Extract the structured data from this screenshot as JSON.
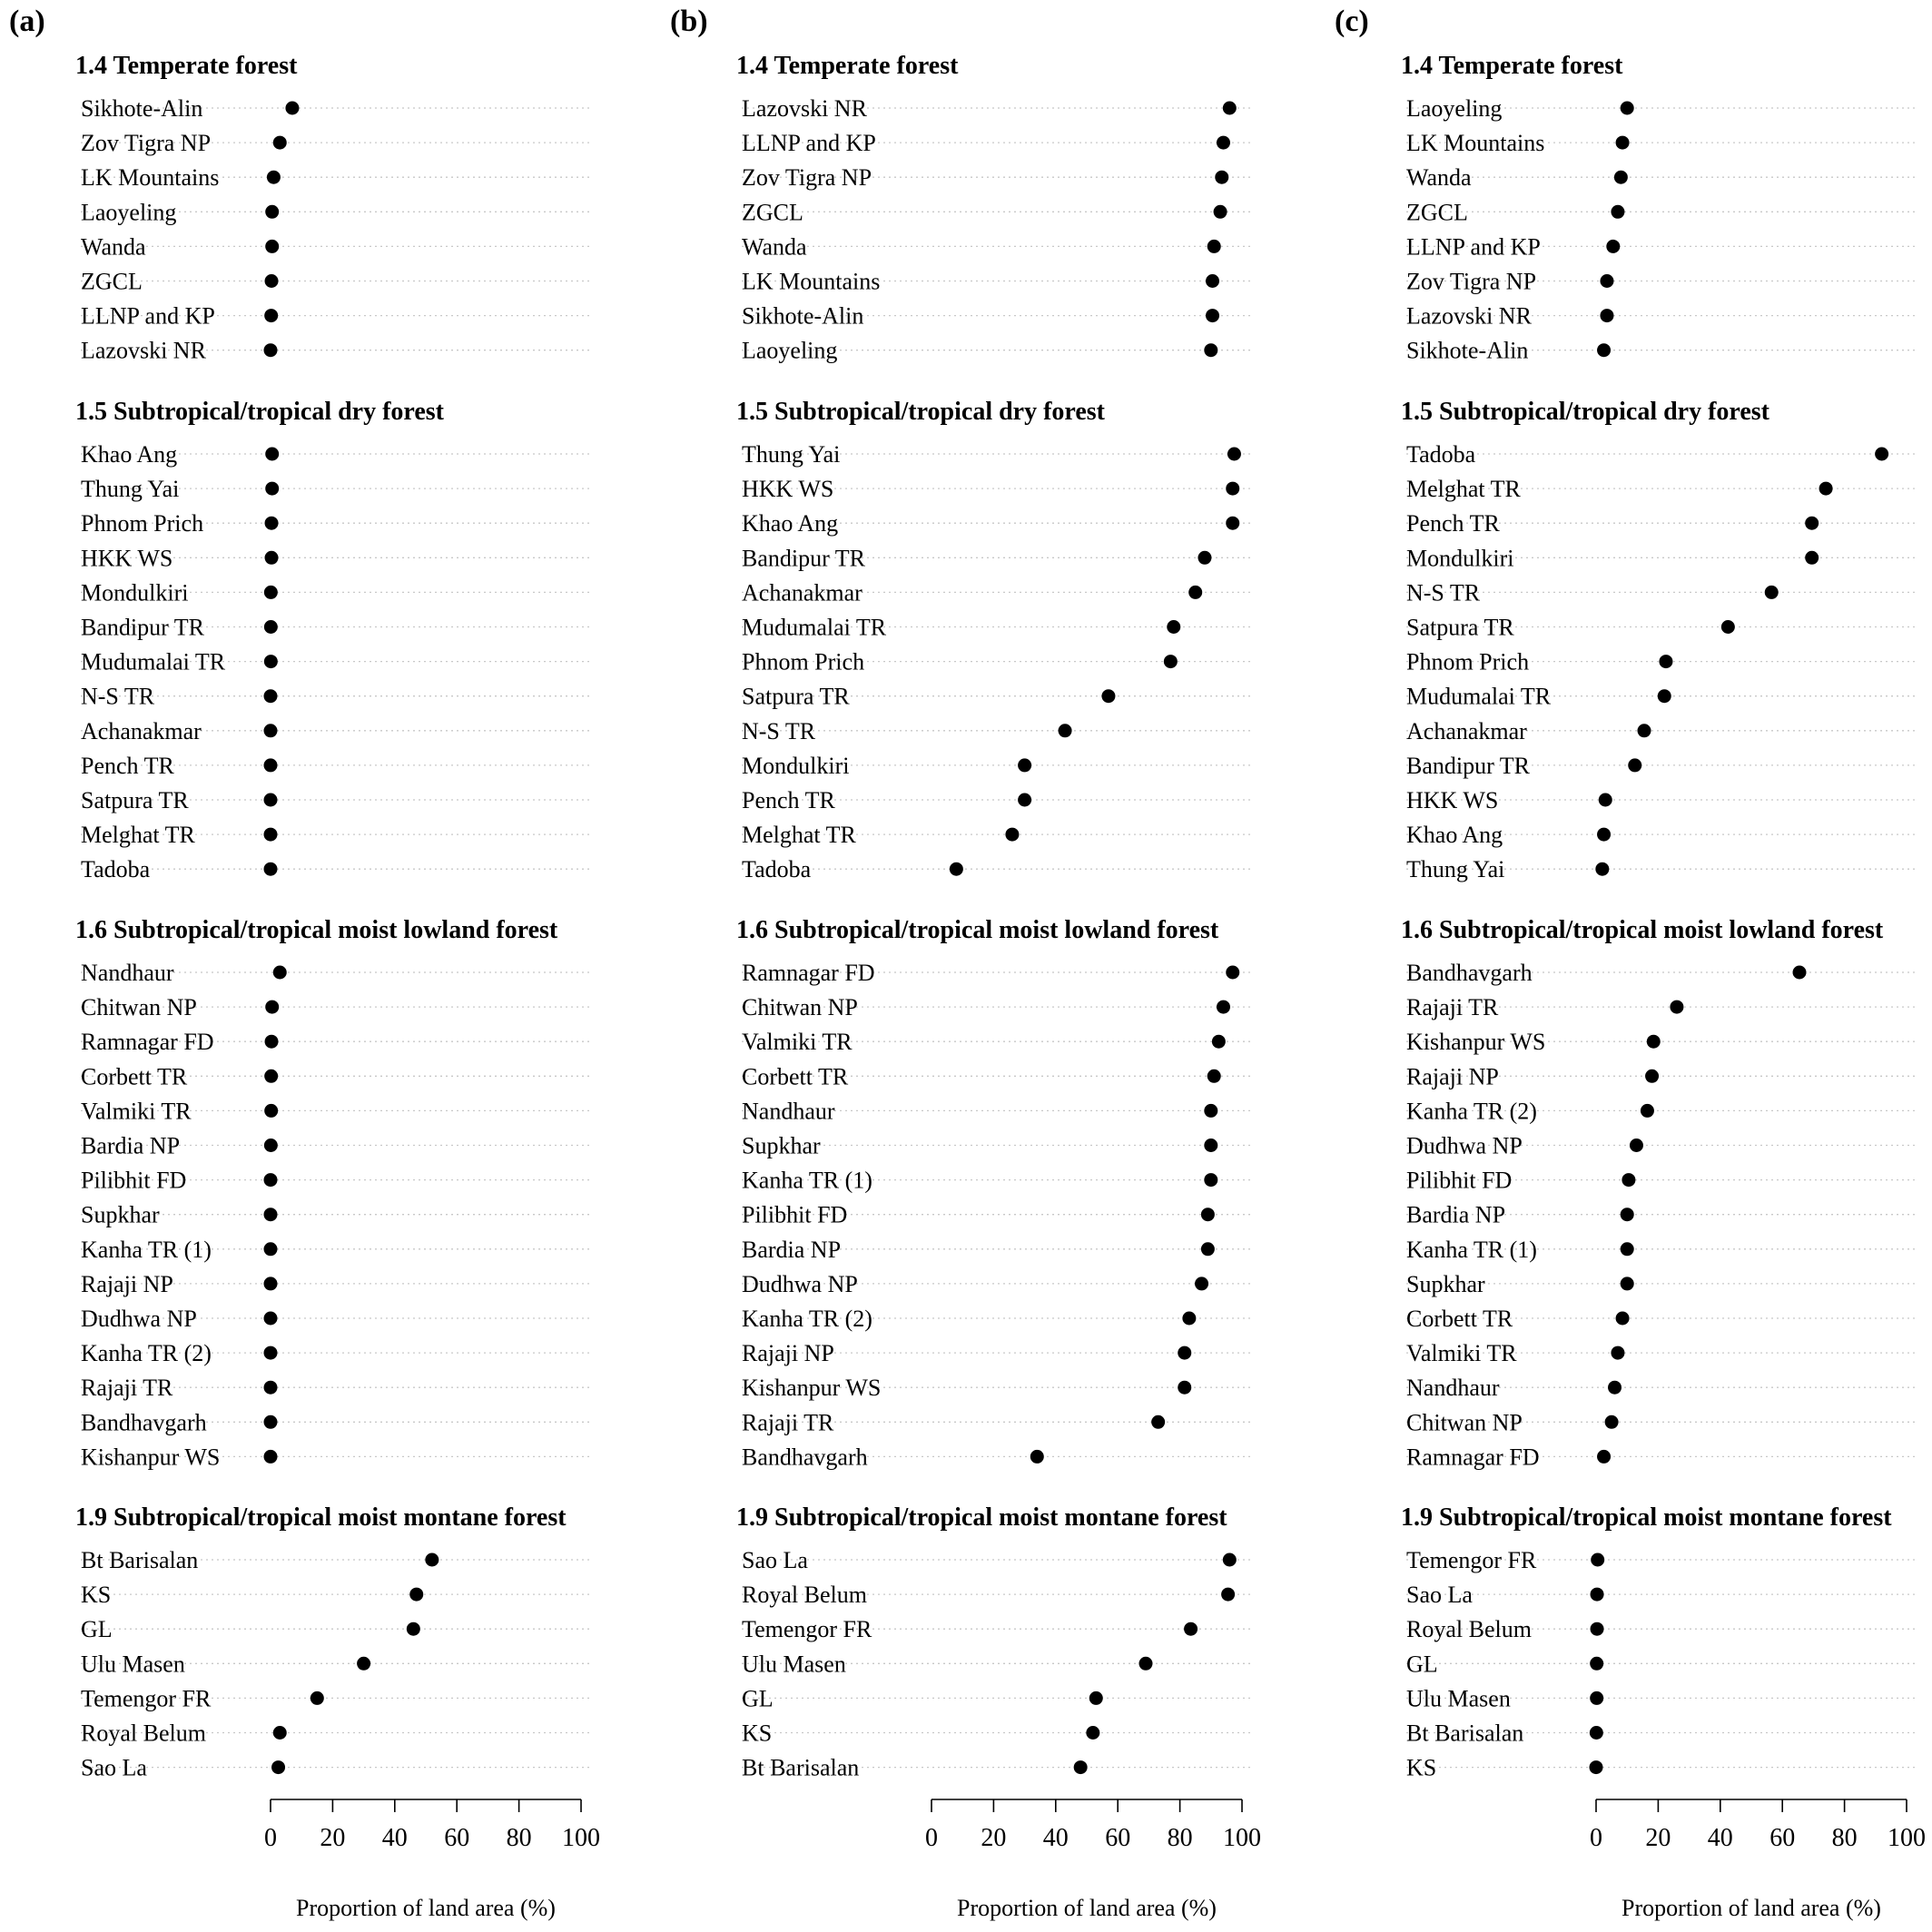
{
  "chart_data": [
    {
      "type": "dot",
      "panel_label": "(a)",
      "xlabel": "Proportion of land area (%)",
      "xlim": [
        0,
        100
      ],
      "xticks": [
        0,
        20,
        40,
        60,
        80,
        100
      ],
      "groups": [
        {
          "title": "1.4 Temperate forest",
          "items": [
            {
              "label": "Sikhote-Alin",
              "value": 7
            },
            {
              "label": "Zov Tigra NP",
              "value": 3
            },
            {
              "label": "LK Mountains",
              "value": 1
            },
            {
              "label": "Laoyeling",
              "value": 0.5
            },
            {
              "label": "Wanda",
              "value": 0.5
            },
            {
              "label": "ZGCL",
              "value": 0.3
            },
            {
              "label": "LLNP and KP",
              "value": 0.2
            },
            {
              "label": "Lazovski NR",
              "value": 0
            }
          ]
        },
        {
          "title": "1.5 Subtropical/tropical dry forest",
          "items": [
            {
              "label": "Khao Ang",
              "value": 0.5
            },
            {
              "label": "Thung Yai",
              "value": 0.5
            },
            {
              "label": "Phnom Prich",
              "value": 0.3
            },
            {
              "label": "HKK WS",
              "value": 0.3
            },
            {
              "label": "Mondulkiri",
              "value": 0.1
            },
            {
              "label": "Bandipur TR",
              "value": 0.1
            },
            {
              "label": "Mudumalai TR",
              "value": 0.1
            },
            {
              "label": "N-S TR",
              "value": 0
            },
            {
              "label": "Achanakmar",
              "value": 0
            },
            {
              "label": "Pench TR",
              "value": 0
            },
            {
              "label": "Satpura TR",
              "value": 0
            },
            {
              "label": "Melghat TR",
              "value": 0
            },
            {
              "label": "Tadoba",
              "value": 0
            }
          ]
        },
        {
          "title": "1.6 Subtropical/tropical moist lowland forest",
          "items": [
            {
              "label": "Nandhaur",
              "value": 3
            },
            {
              "label": "Chitwan NP",
              "value": 0.5
            },
            {
              "label": "Ramnagar FD",
              "value": 0.3
            },
            {
              "label": "Corbett TR",
              "value": 0.2
            },
            {
              "label": "Valmiki TR",
              "value": 0.2
            },
            {
              "label": "Bardia NP",
              "value": 0.1
            },
            {
              "label": "Pilibhit FD",
              "value": 0
            },
            {
              "label": "Supkhar",
              "value": 0
            },
            {
              "label": "Kanha TR (1)",
              "value": 0
            },
            {
              "label": "Rajaji NP",
              "value": 0
            },
            {
              "label": "Dudhwa NP",
              "value": 0
            },
            {
              "label": "Kanha TR (2)",
              "value": 0
            },
            {
              "label": "Rajaji TR",
              "value": 0
            },
            {
              "label": "Bandhavgarh",
              "value": 0
            },
            {
              "label": "Kishanpur WS",
              "value": 0
            }
          ]
        },
        {
          "title": "1.9 Subtropical/tropical moist montane forest",
          "items": [
            {
              "label": "Bt Barisalan",
              "value": 52
            },
            {
              "label": "KS",
              "value": 47
            },
            {
              "label": "GL",
              "value": 46
            },
            {
              "label": "Ulu Masen",
              "value": 30
            },
            {
              "label": "Temengor FR",
              "value": 15
            },
            {
              "label": "Royal Belum",
              "value": 3
            },
            {
              "label": "Sao La",
              "value": 2.5
            }
          ]
        }
      ]
    },
    {
      "type": "dot",
      "panel_label": "(b)",
      "xlabel": "Proportion of land area (%)",
      "xlim": [
        0,
        100
      ],
      "xticks": [
        0,
        20,
        40,
        60,
        80,
        100
      ],
      "groups": [
        {
          "title": "1.4 Temperate forest",
          "items": [
            {
              "label": "Lazovski NR",
              "value": 96
            },
            {
              "label": "LLNP and KP",
              "value": 94
            },
            {
              "label": "Zov Tigra NP",
              "value": 93.5
            },
            {
              "label": "ZGCL",
              "value": 93
            },
            {
              "label": "Wanda",
              "value": 91
            },
            {
              "label": "LK Mountains",
              "value": 90.5
            },
            {
              "label": "Sikhote-Alin",
              "value": 90.5
            },
            {
              "label": "Laoyeling",
              "value": 90
            }
          ]
        },
        {
          "title": "1.5 Subtropical/tropical dry forest",
          "items": [
            {
              "label": "Thung Yai",
              "value": 97.5
            },
            {
              "label": "HKK WS",
              "value": 97
            },
            {
              "label": "Khao Ang",
              "value": 97
            },
            {
              "label": "Bandipur TR",
              "value": 88
            },
            {
              "label": "Achanakmar",
              "value": 85
            },
            {
              "label": "Mudumalai TR",
              "value": 78
            },
            {
              "label": "Phnom Prich",
              "value": 77
            },
            {
              "label": "Satpura TR",
              "value": 57
            },
            {
              "label": "N-S TR",
              "value": 43
            },
            {
              "label": "Mondulkiri",
              "value": 30
            },
            {
              "label": "Pench TR",
              "value": 30
            },
            {
              "label": "Melghat TR",
              "value": 26
            },
            {
              "label": "Tadoba",
              "value": 8
            }
          ]
        },
        {
          "title": "1.6 Subtropical/tropical moist lowland forest",
          "items": [
            {
              "label": "Ramnagar FD",
              "value": 97
            },
            {
              "label": "Chitwan NP",
              "value": 94
            },
            {
              "label": "Valmiki TR",
              "value": 92.5
            },
            {
              "label": "Corbett TR",
              "value": 91
            },
            {
              "label": "Nandhaur",
              "value": 90
            },
            {
              "label": "Supkhar",
              "value": 90
            },
            {
              "label": "Kanha TR (1)",
              "value": 90
            },
            {
              "label": "Pilibhit FD",
              "value": 89
            },
            {
              "label": "Bardia NP",
              "value": 89
            },
            {
              "label": "Dudhwa NP",
              "value": 87
            },
            {
              "label": "Kanha TR (2)",
              "value": 83
            },
            {
              "label": "Rajaji NP",
              "value": 81.5
            },
            {
              "label": "Kishanpur WS",
              "value": 81.5
            },
            {
              "label": "Rajaji TR",
              "value": 73
            },
            {
              "label": "Bandhavgarh",
              "value": 34
            }
          ]
        },
        {
          "title": "1.9 Subtropical/tropical moist montane forest",
          "items": [
            {
              "label": "Sao La",
              "value": 96
            },
            {
              "label": "Royal Belum",
              "value": 95.5
            },
            {
              "label": "Temengor FR",
              "value": 83.5
            },
            {
              "label": "Ulu Masen",
              "value": 69
            },
            {
              "label": "GL",
              "value": 53
            },
            {
              "label": "KS",
              "value": 52
            },
            {
              "label": "Bt Barisalan",
              "value": 48
            }
          ]
        }
      ]
    },
    {
      "type": "dot",
      "panel_label": "(c)",
      "xlabel": "Proportion of land area (%)",
      "xlim": [
        0,
        100
      ],
      "xticks": [
        0,
        20,
        40,
        60,
        80,
        100
      ],
      "groups": [
        {
          "title": "1.4 Temperate forest",
          "items": [
            {
              "label": "Laoyeling",
              "value": 10
            },
            {
              "label": "LK Mountains",
              "value": 8.5
            },
            {
              "label": "Wanda",
              "value": 8
            },
            {
              "label": "ZGCL",
              "value": 7
            },
            {
              "label": "LLNP and KP",
              "value": 5.5
            },
            {
              "label": "Zov Tigra NP",
              "value": 3.5
            },
            {
              "label": "Lazovski NR",
              "value": 3.5
            },
            {
              "label": "Sikhote-Alin",
              "value": 2.5
            }
          ]
        },
        {
          "title": "1.5 Subtropical/tropical dry forest",
          "items": [
            {
              "label": "Tadoba",
              "value": 92
            },
            {
              "label": "Melghat TR",
              "value": 74
            },
            {
              "label": "Pench TR",
              "value": 69.5
            },
            {
              "label": "Mondulkiri",
              "value": 69.5
            },
            {
              "label": "N-S TR",
              "value": 56.5
            },
            {
              "label": "Satpura TR",
              "value": 42.5
            },
            {
              "label": "Phnom Prich",
              "value": 22.5
            },
            {
              "label": "Mudumalai TR",
              "value": 22
            },
            {
              "label": "Achanakmar",
              "value": 15.5
            },
            {
              "label": "Bandipur TR",
              "value": 12.5
            },
            {
              "label": "HKK WS",
              "value": 3
            },
            {
              "label": "Khao Ang",
              "value": 2.5
            },
            {
              "label": "Thung Yai",
              "value": 2
            }
          ]
        },
        {
          "title": "1.6 Subtropical/tropical moist lowland forest",
          "items": [
            {
              "label": "Bandhavgarh",
              "value": 65.5
            },
            {
              "label": "Rajaji TR",
              "value": 26
            },
            {
              "label": "Kishanpur WS",
              "value": 18.5
            },
            {
              "label": "Rajaji NP",
              "value": 18
            },
            {
              "label": "Kanha TR (2)",
              "value": 16.5
            },
            {
              "label": "Dudhwa NP",
              "value": 13
            },
            {
              "label": "Pilibhit FD",
              "value": 10.5
            },
            {
              "label": "Bardia NP",
              "value": 10
            },
            {
              "label": "Kanha TR (1)",
              "value": 10
            },
            {
              "label": "Supkhar",
              "value": 10
            },
            {
              "label": "Corbett TR",
              "value": 8.5
            },
            {
              "label": "Valmiki TR",
              "value": 7
            },
            {
              "label": "Nandhaur",
              "value": 6
            },
            {
              "label": "Chitwan NP",
              "value": 5
            },
            {
              "label": "Ramnagar FD",
              "value": 2.5
            }
          ]
        },
        {
          "title": "1.9 Subtropical/tropical moist montane forest",
          "items": [
            {
              "label": "Temengor FR",
              "value": 0.5
            },
            {
              "label": "Sao La",
              "value": 0.3
            },
            {
              "label": "Royal Belum",
              "value": 0.3
            },
            {
              "label": "GL",
              "value": 0.2
            },
            {
              "label": "Ulu Masen",
              "value": 0.2
            },
            {
              "label": "Bt Barisalan",
              "value": 0.1
            },
            {
              "label": "KS",
              "value": 0
            }
          ]
        }
      ]
    }
  ]
}
